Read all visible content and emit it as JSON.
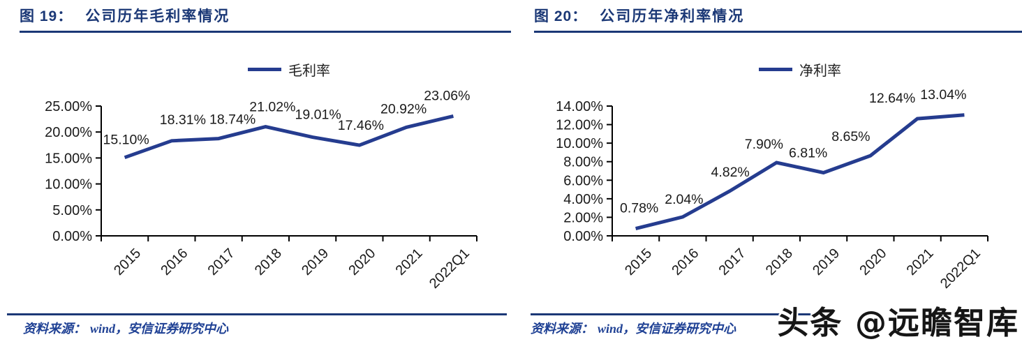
{
  "watermark": "头条 @远瞻智库",
  "colors": {
    "line": "#253c8f",
    "title": "#1b3876",
    "axis": "#000000",
    "tick_label": "#1a1a1a",
    "point_label": "#1a1a1a",
    "source": "#1e4094"
  },
  "figures": [
    {
      "caption_label": "图 19：",
      "caption_title": "公司历年毛利率情况",
      "source_label": "资料来源：",
      "source_text": "wind，安信证券研究中心"
    },
    {
      "caption_label": "图 20：",
      "caption_title": "公司历年净利率情况",
      "source_label": "资料来源：",
      "source_text": "wind，安信证券研究中心"
    }
  ],
  "chart_data": [
    {
      "type": "line",
      "title": "公司历年毛利率情况",
      "legend_position": "top",
      "grid": false,
      "categories": [
        "2015",
        "2016",
        "2017",
        "2018",
        "2019",
        "2020",
        "2021",
        "2022Q1"
      ],
      "series": [
        {
          "name": "毛利率",
          "values": [
            15.1,
            18.31,
            18.74,
            21.02,
            19.01,
            17.46,
            20.92,
            23.06
          ]
        }
      ],
      "point_labels": [
        "15.10%",
        "18.31%",
        "18.74%",
        "21.02%",
        "19.01%",
        "17.46%",
        "20.92%",
        "23.06%"
      ],
      "ylim": [
        0,
        25
      ],
      "ytick_labels": [
        "25.00%",
        "20.00%",
        "15.00%",
        "10.00%",
        "5.00%",
        "0.00%"
      ]
    },
    {
      "type": "line",
      "title": "公司历年净利率情况",
      "legend_position": "top",
      "grid": false,
      "categories": [
        "2015",
        "2016",
        "2017",
        "2018",
        "2019",
        "2020",
        "2021",
        "2022Q1"
      ],
      "series": [
        {
          "name": "净利率",
          "values": [
            0.78,
            2.04,
            4.82,
            7.9,
            6.81,
            8.65,
            12.64,
            13.04
          ]
        }
      ],
      "point_labels": [
        "0.78%",
        "2.04%",
        "4.82%",
        "7.90%",
        "6.81%",
        "8.65%",
        "12.64%",
        "13.04%"
      ],
      "ylim": [
        0,
        14
      ],
      "ytick_labels": [
        "14.00%",
        "12.00%",
        "10.00%",
        "8.00%",
        "6.00%",
        "4.00%",
        "2.00%",
        "0.00%"
      ]
    }
  ]
}
